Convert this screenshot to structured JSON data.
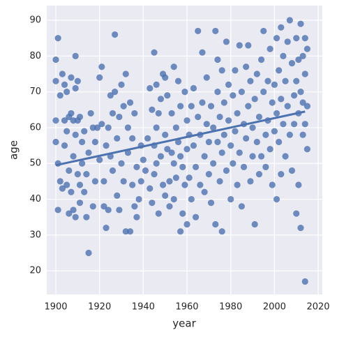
{
  "chart_data": {
    "type": "scatter",
    "x_label": "year",
    "y_label": "age",
    "color": "#4c72b0",
    "grid": true,
    "xlim": [
      1895.85,
      2021.9
    ],
    "ylim": [
      13.4,
      94.1
    ],
    "xticks": [
      1900,
      1920,
      1940,
      1960,
      1980,
      2000,
      2020
    ],
    "yticks": [
      20,
      30,
      40,
      50,
      60,
      70,
      80,
      90
    ],
    "x": [
      1900,
      1901,
      1900,
      1900,
      1900,
      1901,
      1901,
      1902,
      1902,
      1903,
      1903,
      1904,
      1904,
      1904,
      1905,
      1905,
      1905,
      1906,
      1906,
      1906,
      1907,
      1907,
      1907,
      1908,
      1908,
      1908,
      1909,
      1909,
      1909,
      1909,
      1910,
      1910,
      1910,
      1911,
      1911,
      1911,
      1912,
      1912,
      1913,
      1913,
      1914,
      1914,
      1915,
      1915,
      1916,
      1917,
      1917,
      1918,
      1918,
      1919,
      1920,
      1920,
      1921,
      1921,
      1922,
      1922,
      1923,
      1923,
      1924,
      1924,
      1925,
      1925,
      1926,
      1926,
      1927,
      1927,
      1928,
      1928,
      1929,
      1929,
      1930,
      1930,
      1931,
      1931,
      1932,
      1932,
      1933,
      1933,
      1934,
      1934,
      1935,
      1935,
      1936,
      1936,
      1937,
      1937,
      1938,
      1939,
      1939,
      1940,
      1941,
      1942,
      1943,
      1943,
      1944,
      1944,
      1945,
      1945,
      1945,
      1946,
      1946,
      1946,
      1947,
      1947,
      1948,
      1948,
      1949,
      1949,
      1950,
      1950,
      1950,
      1951,
      1951,
      1952,
      1952,
      1953,
      1953,
      1954,
      1954,
      1954,
      1955,
      1955,
      1956,
      1956,
      1957,
      1957,
      1957,
      1958,
      1958,
      1959,
      1959,
      1960,
      1960,
      1960,
      1961,
      1961,
      1962,
      1962,
      1963,
      1963,
      1964,
      1964,
      1965,
      1965,
      1966,
      1966,
      1967,
      1967,
      1968,
      1968,
      1969,
      1969,
      1970,
      1970,
      1971,
      1971,
      1972,
      1972,
      1973,
      1973,
      1974,
      1974,
      1974,
      1975,
      1975,
      1976,
      1976,
      1976,
      1977,
      1977,
      1978,
      1978,
      1979,
      1979,
      1980,
      1980,
      1981,
      1981,
      1982,
      1982,
      1983,
      1983,
      1984,
      1984,
      1985,
      1985,
      1986,
      1986,
      1987,
      1987,
      1988,
      1988,
      1989,
      1989,
      1990,
      1990,
      1991,
      1991,
      1992,
      1992,
      1993,
      1993,
      1994,
      1994,
      1995,
      1995,
      1996,
      1996,
      1997,
      1997,
      1998,
      1998,
      1999,
      1999,
      2000,
      2000,
      2001,
      2001,
      2001,
      2002,
      2002,
      2003,
      2003,
      2003,
      2004,
      2004,
      2005,
      2005,
      2006,
      2006,
      2007,
      2007,
      2008,
      2008,
      2009,
      2009,
      2010,
      2010,
      2010,
      2011,
      2011,
      2011,
      2012,
      2012,
      2012,
      2013,
      2013,
      2014,
      2014,
      2014,
      2015,
      2015,
      2015,
      2013,
      2014
    ],
    "values": [
      79,
      85,
      73,
      62,
      56,
      50,
      37,
      45,
      69,
      75,
      43,
      72,
      62,
      55,
      70,
      44,
      59,
      36,
      48,
      63,
      74,
      64,
      42,
      62,
      52,
      37,
      80,
      71,
      58,
      35,
      73,
      47,
      62,
      63,
      44,
      39,
      56,
      50,
      59,
      42,
      35,
      47,
      25,
      53,
      64,
      60,
      38,
      56,
      45,
      60,
      74,
      51,
      77,
      61,
      45,
      38,
      32,
      55,
      60,
      37,
      69,
      52,
      64,
      48,
      86,
      70,
      57,
      41,
      37,
      63,
      72,
      50,
      45,
      66,
      75,
      31,
      53,
      60,
      67,
      31,
      44,
      57,
      64,
      38,
      49,
      35,
      40,
      55,
      45,
      51,
      48,
      57,
      71,
      43,
      65,
      39,
      81,
      55,
      47,
      72,
      60,
      50,
      64,
      36,
      68,
      52,
      75,
      44,
      58,
      74,
      41,
      54,
      69,
      45,
      38,
      64,
      53,
      77,
      50,
      40,
      60,
      46,
      56,
      73,
      31,
      52,
      66,
      49,
      36,
      70,
      44,
      62,
      54,
      33,
      58,
      46,
      66,
      40,
      71,
      55,
      35,
      49,
      87,
      63,
      58,
      44,
      81,
      67,
      52,
      42,
      74,
      61,
      56,
      47,
      66,
      39,
      60,
      50,
      87,
      33,
      79,
      70,
      56,
      63,
      45,
      76,
      53,
      31,
      67,
      58,
      84,
      48,
      72,
      62,
      40,
      55,
      69,
      50,
      76,
      59,
      64,
      44,
      83,
      53,
      70,
      38,
      61,
      49,
      77,
      57,
      83,
      66,
      45,
      73,
      60,
      52,
      33,
      68,
      75,
      56,
      63,
      47,
      79,
      52,
      87,
      70,
      58,
      49,
      73,
      62,
      82,
      54,
      67,
      44,
      72,
      59,
      85,
      64,
      40,
      76,
      56,
      88,
      68,
      47,
      80,
      61,
      73,
      52,
      84,
      66,
      90,
      58,
      78,
      48,
      69,
      61,
      85,
      73,
      36,
      79,
      64,
      44,
      89,
      70,
      32,
      80,
      58,
      75,
      17,
      85,
      66,
      54,
      82,
      67,
      61
    ],
    "regression": {
      "x": [
        1900,
        2014
      ],
      "values": [
        49.5,
        64.5
      ]
    }
  }
}
